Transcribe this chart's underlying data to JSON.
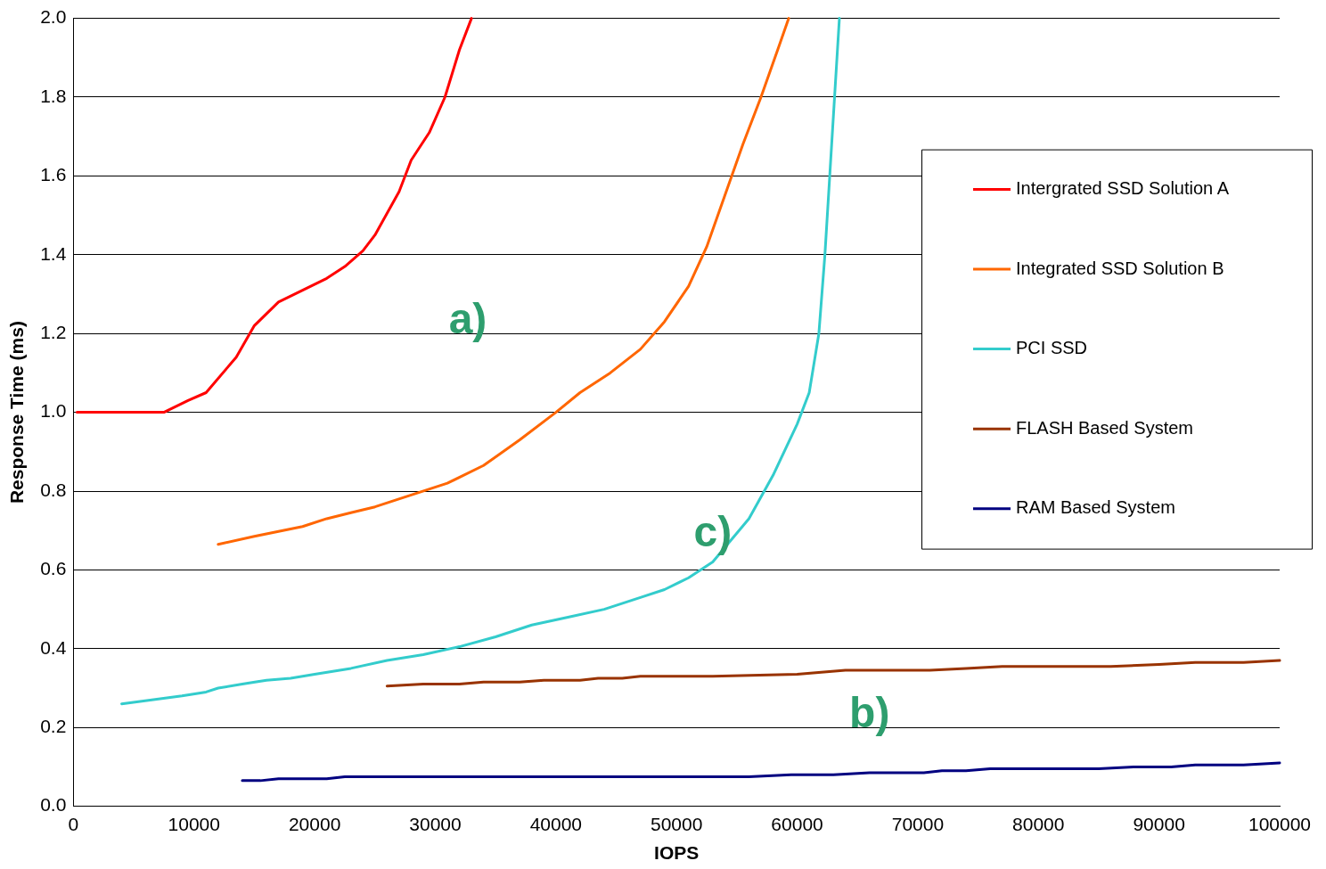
{
  "chart_data": {
    "type": "line",
    "xlabel": "IOPS",
    "ylabel": "Response Time (ms)",
    "xlim": [
      0,
      100000
    ],
    "xticks": [
      0,
      10000,
      20000,
      30000,
      40000,
      50000,
      60000,
      70000,
      80000,
      90000,
      100000
    ],
    "ylim": [
      0,
      2
    ],
    "yticks": [
      {
        "value": 0,
        "label": "0.0"
      },
      {
        "value": 0.2,
        "label": "0.2"
      },
      {
        "value": 0.4,
        "label": "0.4"
      },
      {
        "value": 0.6,
        "label": "0.6"
      },
      {
        "value": 0.8,
        "label": "0.8"
      },
      {
        "value": 1,
        "label": "1.0"
      },
      {
        "value": 1.2,
        "label": "1.2"
      },
      {
        "value": 1.4,
        "label": "1.4"
      },
      {
        "value": 1.6,
        "label": "1.6"
      },
      {
        "value": 1.8,
        "label": "1.8"
      },
      {
        "value": 2,
        "label": "2.0"
      }
    ],
    "grid": "y",
    "legend": "right",
    "marker": "none",
    "line_style": "solid",
    "series": [
      {
        "name": "Intergrated SSD Solution A",
        "color": "#ff0000",
        "x": [
          300,
          7500,
          9500,
          11000,
          13500,
          15000,
          17000,
          19000,
          21000,
          22500,
          24000,
          25000,
          27000,
          28000,
          29500,
          30800,
          32000,
          33000
        ],
        "values": [
          1.0,
          1.0,
          1.03,
          1.05,
          1.14,
          1.22,
          1.28,
          1.31,
          1.34,
          1.37,
          1.41,
          1.45,
          1.56,
          1.64,
          1.71,
          1.8,
          1.92,
          2.0
        ]
      },
      {
        "name": "Integrated SSD Solution B",
        "color": "#ff6600",
        "x": [
          12000,
          15000,
          19000,
          21000,
          23000,
          25000,
          28000,
          31000,
          34000,
          37000,
          40000,
          42000,
          44500,
          47000,
          49000,
          51000,
          52500,
          54000,
          55500,
          57000,
          58500,
          59300
        ],
        "values": [
          0.665,
          0.685,
          0.71,
          0.73,
          0.745,
          0.76,
          0.79,
          0.82,
          0.865,
          0.93,
          1.0,
          1.05,
          1.1,
          1.16,
          1.23,
          1.32,
          1.42,
          1.55,
          1.68,
          1.8,
          1.93,
          2.0
        ]
      },
      {
        "name": "PCI SSD",
        "color": "#33cccc",
        "x": [
          4000,
          9000,
          11000,
          12000,
          14000,
          16000,
          18000,
          20000,
          23000,
          26000,
          29000,
          32000,
          35000,
          38000,
          41000,
          44000,
          47000,
          49000,
          51000,
          53000,
          56000,
          58000,
          60000,
          61000,
          61800,
          62300,
          62700,
          63100,
          63500
        ],
        "values": [
          0.26,
          0.28,
          0.29,
          0.3,
          0.31,
          0.32,
          0.325,
          0.335,
          0.35,
          0.37,
          0.385,
          0.405,
          0.43,
          0.46,
          0.48,
          0.5,
          0.53,
          0.55,
          0.58,
          0.62,
          0.73,
          0.84,
          0.97,
          1.05,
          1.2,
          1.4,
          1.6,
          1.8,
          2.0
        ]
      },
      {
        "name": "FLASH Based System",
        "color": "#993300",
        "x": [
          26000,
          29000,
          32000,
          34000,
          37000,
          39000,
          42000,
          43500,
          45500,
          47000,
          53000,
          60000,
          62000,
          64000,
          71000,
          74000,
          77000,
          86000,
          90000,
          93000,
          97000,
          100000
        ],
        "values": [
          0.305,
          0.31,
          0.31,
          0.315,
          0.315,
          0.32,
          0.32,
          0.325,
          0.325,
          0.33,
          0.33,
          0.335,
          0.34,
          0.345,
          0.345,
          0.35,
          0.355,
          0.355,
          0.36,
          0.365,
          0.365,
          0.37
        ]
      },
      {
        "name": "RAM Based System",
        "color": "#000080",
        "x": [
          14000,
          15500,
          17000,
          21000,
          22500,
          56000,
          59500,
          63000,
          66000,
          70500,
          72000,
          74000,
          76000,
          85000,
          88000,
          91000,
          93000,
          97000,
          100000
        ],
        "values": [
          0.065,
          0.065,
          0.07,
          0.07,
          0.075,
          0.075,
          0.08,
          0.08,
          0.085,
          0.085,
          0.09,
          0.09,
          0.095,
          0.095,
          0.1,
          0.1,
          0.105,
          0.105,
          0.11
        ]
      }
    ],
    "annotations": [
      "a)",
      "b)",
      "c)"
    ]
  }
}
